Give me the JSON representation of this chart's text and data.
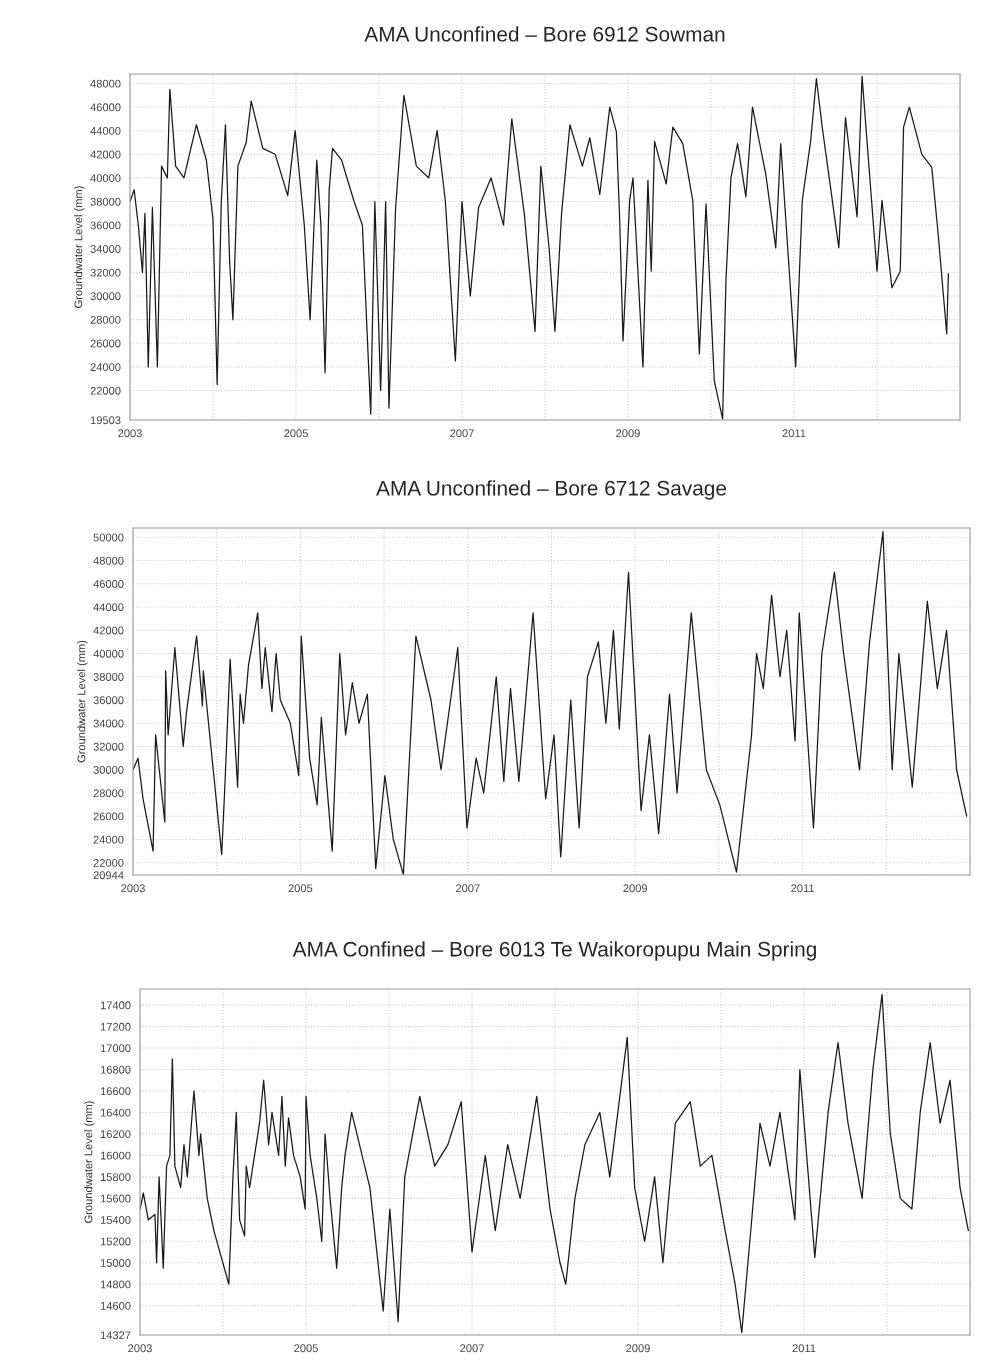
{
  "chart_data": [
    {
      "type": "line",
      "title": "AMA Unconfined – Bore 6912 Sowman",
      "ylabel": "Groundwater Level (mm)",
      "grid": true,
      "xlim": [
        2003,
        2013
      ],
      "ylim": [
        19503,
        48800
      ],
      "xticks": [
        2003,
        {
          "value": 2004,
          "label": null
        },
        2005,
        {
          "value": 2006,
          "label": null
        },
        2007,
        {
          "value": 2008,
          "label": null
        },
        2009,
        {
          "value": 2010,
          "label": null
        },
        2011,
        {
          "value": 2012,
          "label": null
        }
      ],
      "yticks": [
        19503,
        22000,
        24000,
        26000,
        28000,
        30000,
        32000,
        34000,
        36000,
        38000,
        40000,
        42000,
        44000,
        46000,
        48000
      ],
      "x": [
        2003.0,
        2003.05,
        2003.1,
        2003.15,
        2003.18,
        2003.22,
        2003.27,
        2003.33,
        2003.38,
        2003.45,
        2003.48,
        2003.55,
        2003.65,
        2003.8,
        2003.92,
        2004.0,
        2004.05,
        2004.1,
        2004.15,
        2004.2,
        2004.24,
        2004.3,
        2004.4,
        2004.46,
        2004.6,
        2004.75,
        2004.9,
        2004.99,
        2005.1,
        2005.17,
        2005.25,
        2005.3,
        2005.35,
        2005.4,
        2005.44,
        2005.55,
        2005.7,
        2005.8,
        2005.9,
        2005.95,
        2006.02,
        2006.08,
        2006.12,
        2006.2,
        2006.3,
        2006.45,
        2006.6,
        2006.7,
        2006.8,
        2006.92,
        2007.0,
        2007.1,
        2007.2,
        2007.35,
        2007.5,
        2007.6,
        2007.75,
        2007.88,
        2007.95,
        2008.05,
        2008.12,
        2008.2,
        2008.3,
        2008.45,
        2008.54,
        2008.66,
        2008.78,
        2008.86,
        2008.9,
        2008.94,
        2009.02,
        2009.06,
        2009.18,
        2009.24,
        2009.28,
        2009.32,
        2009.46,
        2009.54,
        2009.66,
        2009.78,
        2009.86,
        2009.94,
        2010.04,
        2010.14,
        2010.18,
        2010.24,
        2010.32,
        2010.42,
        2010.5,
        2010.66,
        2010.78,
        2010.84,
        2011.02,
        2011.1,
        2011.2,
        2011.27,
        2011.34,
        2011.54,
        2011.62,
        2011.76,
        2011.82,
        2012.0,
        2012.06,
        2012.18,
        2012.28,
        2012.32,
        2012.39,
        2012.54,
        2012.66,
        2012.74,
        2012.84,
        2012.86
      ],
      "series": [
        {
          "color": "#1a1a1a",
          "values": [
            38000,
            39000,
            36000,
            32000,
            37000,
            24000,
            37500,
            24000,
            41000,
            40000,
            47500,
            41000,
            40000,
            44500,
            41500,
            36500,
            22500,
            38000,
            44500,
            33000,
            28000,
            41000,
            43000,
            46500,
            42500,
            42000,
            38500,
            44000,
            36000,
            28000,
            41500,
            36000,
            23500,
            39000,
            42500,
            41500,
            38000,
            36000,
            20000,
            38000,
            22000,
            38000,
            20500,
            37500,
            47000,
            41000,
            40000,
            44000,
            38000,
            24500,
            38000,
            30000,
            37500,
            40000,
            36000,
            45000,
            37000,
            27000,
            41000,
            34000,
            27000,
            37000,
            44500,
            41000,
            43400,
            38600,
            46000,
            43900,
            36400,
            26200,
            38100,
            40000,
            24000,
            39800,
            32100,
            43100,
            39500,
            44300,
            42900,
            38100,
            25100,
            37800,
            22800,
            19600,
            31300,
            40000,
            42900,
            38400,
            46000,
            40300,
            34100,
            42900,
            24000,
            38100,
            43100,
            48400,
            44300,
            34100,
            45100,
            36700,
            48600,
            32100,
            38100,
            30700,
            32100,
            44300,
            46000,
            42000,
            40900,
            35000,
            26800,
            31900
          ]
        }
      ]
    },
    {
      "type": "line",
      "title": "AMA Unconfined – Bore 6712 Savage",
      "ylabel": "Groundwater Level (mm)",
      "grid": true,
      "xlim": [
        2003,
        2013
      ],
      "ylim": [
        20944,
        50800
      ],
      "xticks": [
        2003,
        {
          "value": 2004,
          "label": null
        },
        2005,
        {
          "value": 2006,
          "label": null
        },
        2007,
        {
          "value": 2008,
          "label": null
        },
        2009,
        {
          "value": 2010,
          "label": null
        },
        2011,
        {
          "value": 2012,
          "label": null
        }
      ],
      "yticks": [
        20944,
        22000,
        24000,
        26000,
        28000,
        30000,
        32000,
        34000,
        36000,
        38000,
        40000,
        42000,
        44000,
        46000,
        48000,
        50000
      ],
      "x": [
        2003.0,
        2003.06,
        2003.12,
        2003.24,
        2003.27,
        2003.38,
        2003.39,
        2003.42,
        2003.5,
        2003.6,
        2003.64,
        2003.76,
        2003.83,
        2003.84,
        2004.06,
        2004.1,
        2004.16,
        2004.25,
        2004.28,
        2004.32,
        2004.38,
        2004.49,
        2004.54,
        2004.58,
        2004.66,
        2004.71,
        2004.76,
        2004.88,
        2004.98,
        2005.01,
        2005.11,
        2005.2,
        2005.25,
        2005.38,
        2005.47,
        2005.54,
        2005.62,
        2005.7,
        2005.8,
        2005.9,
        2006.01,
        2006.11,
        2006.23,
        2006.38,
        2006.56,
        2006.68,
        2006.88,
        2006.99,
        2007.1,
        2007.19,
        2007.34,
        2007.43,
        2007.51,
        2007.61,
        2007.78,
        2007.93,
        2008.03,
        2008.11,
        2008.23,
        2008.33,
        2008.43,
        2008.56,
        2008.65,
        2008.74,
        2008.81,
        2008.92,
        2009.07,
        2009.17,
        2009.28,
        2009.41,
        2009.5,
        2009.67,
        2009.85,
        2010.01,
        2010.21,
        2010.39,
        2010.45,
        2010.53,
        2010.63,
        2010.73,
        2010.81,
        2010.91,
        2010.96,
        2011.13,
        2011.23,
        2011.38,
        2011.49,
        2011.68,
        2011.8,
        2011.96,
        2012.07,
        2012.15,
        2012.31,
        2012.49,
        2012.61,
        2012.72,
        2012.84,
        2012.96
      ],
      "series": [
        {
          "color": "#1a1a1a",
          "values": [
            30000,
            31000,
            27500,
            23000,
            33000,
            25500,
            38500,
            33000,
            40500,
            32000,
            35000,
            41500,
            35500,
            38500,
            22700,
            29000,
            39500,
            28500,
            36500,
            34000,
            39000,
            43500,
            37000,
            40500,
            35000,
            40000,
            36000,
            34000,
            29500,
            41500,
            31000,
            27000,
            34500,
            23000,
            40000,
            33000,
            37500,
            34000,
            36500,
            21500,
            29500,
            24000,
            21000,
            41500,
            36000,
            30000,
            40500,
            25000,
            31000,
            28000,
            38000,
            29000,
            37000,
            29000,
            43500,
            27500,
            33000,
            22500,
            36000,
            25000,
            38000,
            41000,
            34000,
            42000,
            33500,
            47000,
            26500,
            33000,
            24500,
            36500,
            28000,
            43500,
            30000,
            27000,
            21200,
            33000,
            40000,
            37000,
            45000,
            38000,
            42000,
            32500,
            43500,
            25000,
            40000,
            47000,
            40000,
            30000,
            41000,
            50500,
            30000,
            40000,
            28500,
            44500,
            37000,
            42000,
            30000,
            26000
          ]
        }
      ]
    },
    {
      "type": "line",
      "title": "AMA Confined – Bore 6013 Te Waikoropupu Main Spring",
      "ylabel": "Groundwater Level (mm)",
      "grid": true,
      "xlim": [
        2003,
        2013
      ],
      "ylim": [
        14327,
        17550
      ],
      "xticks": [
        2003,
        {
          "value": 2004,
          "label": null
        },
        2005,
        {
          "value": 2006,
          "label": null
        },
        2007,
        {
          "value": 2008,
          "label": null
        },
        2009,
        {
          "value": 2010,
          "label": null
        },
        2011,
        {
          "value": 2012,
          "label": null
        }
      ],
      "yticks": [
        14327,
        14600,
        14800,
        15000,
        15200,
        15400,
        15600,
        15800,
        16000,
        16200,
        16400,
        16600,
        16800,
        17000,
        17200,
        17400
      ],
      "x": [
        2003.0,
        2003.04,
        2003.1,
        2003.18,
        2003.2,
        2003.23,
        2003.26,
        2003.28,
        2003.32,
        2003.36,
        2003.39,
        2003.42,
        2003.49,
        2003.53,
        2003.57,
        2003.65,
        2003.71,
        2003.73,
        2003.81,
        2003.89,
        2004.07,
        2004.12,
        2004.16,
        2004.2,
        2004.26,
        2004.28,
        2004.32,
        2004.44,
        2004.49,
        2004.55,
        2004.59,
        2004.67,
        2004.71,
        2004.75,
        2004.79,
        2004.85,
        2004.93,
        2004.99,
        2005.0,
        2005.05,
        2005.13,
        2005.19,
        2005.23,
        2005.29,
        2005.37,
        2005.43,
        2005.47,
        2005.55,
        2005.77,
        2005.93,
        2006.01,
        2006.11,
        2006.19,
        2006.37,
        2006.55,
        2006.71,
        2006.87,
        2007.0,
        2007.16,
        2007.28,
        2007.43,
        2007.58,
        2007.78,
        2007.94,
        2008.06,
        2008.13,
        2008.24,
        2008.36,
        2008.54,
        2008.66,
        2008.87,
        2008.96,
        2009.08,
        2009.2,
        2009.3,
        2009.45,
        2009.63,
        2009.75,
        2009.89,
        2010.05,
        2010.17,
        2010.25,
        2010.37,
        2010.47,
        2010.59,
        2010.71,
        2010.89,
        2010.95,
        2011.13,
        2011.29,
        2011.41,
        2011.53,
        2011.7,
        2011.83,
        2011.94,
        2012.04,
        2012.16,
        2012.3,
        2012.4,
        2012.52,
        2012.64,
        2012.76,
        2012.88,
        2012.98
      ],
      "series": [
        {
          "color": "#1a1a1a",
          "values": [
            15500,
            15650,
            15400,
            15450,
            15000,
            15800,
            15300,
            14950,
            15900,
            16000,
            16900,
            15900,
            15700,
            16100,
            15800,
            16600,
            16000,
            16200,
            15600,
            15300,
            14800,
            15800,
            16400,
            15400,
            15250,
            15900,
            15700,
            16300,
            16700,
            16100,
            16400,
            16000,
            16550,
            15900,
            16350,
            16000,
            15800,
            15500,
            16550,
            16000,
            15600,
            15200,
            16200,
            15600,
            14950,
            15700,
            16000,
            16400,
            15700,
            14550,
            15500,
            14450,
            15800,
            16550,
            15900,
            16100,
            16500,
            15100,
            16000,
            15300,
            16100,
            15600,
            16550,
            15500,
            15000,
            14800,
            15600,
            16100,
            16400,
            15800,
            17100,
            15700,
            15200,
            15800,
            15000,
            16300,
            16500,
            15900,
            16000,
            15300,
            14800,
            14350,
            15400,
            16300,
            15900,
            16400,
            15400,
            16800,
            15050,
            16400,
            17050,
            16300,
            15600,
            16800,
            17500,
            16200,
            15600,
            15500,
            16400,
            17050,
            16300,
            16700,
            15700,
            15300
          ]
        }
      ]
    }
  ]
}
